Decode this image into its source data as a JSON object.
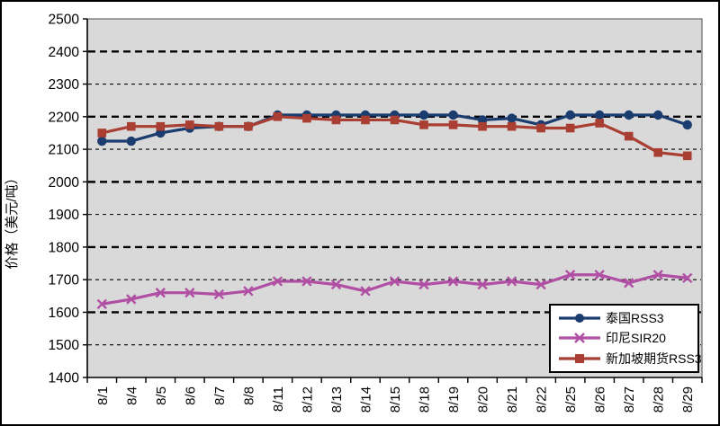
{
  "chart_data": {
    "type": "line",
    "title": "",
    "xlabel": "",
    "ylabel": "价格（美元/吨）",
    "ylim": [
      1400,
      2500
    ],
    "ytick_interval": 100,
    "ytick_labels": [
      "2500",
      "2400",
      "2300",
      "2200",
      "2100",
      "2000",
      "1900",
      "1800",
      "1700",
      "1600",
      "1500",
      "1400"
    ],
    "grid": "horizontal-dashed, major every 200, minor every 100",
    "legend_position": "inside-bottom-right",
    "plot_background": "#d9d9d9",
    "categories": [
      "8/1",
      "8/4",
      "8/5",
      "8/6",
      "8/7",
      "8/8",
      "8/11",
      "8/12",
      "8/13",
      "8/14",
      "8/15",
      "8/18",
      "8/19",
      "8/20",
      "8/21",
      "8/22",
      "8/25",
      "8/26",
      "8/27",
      "8/28",
      "8/29"
    ],
    "series": [
      {
        "name": "泰国RSS3",
        "color": "#1b3c6e",
        "marker": "circle",
        "values": [
          2125,
          2125,
          2150,
          2165,
          2170,
          2170,
          2205,
          2205,
          2205,
          2205,
          2205,
          2205,
          2205,
          2190,
          2195,
          2175,
          2205,
          2205,
          2205,
          2205,
          2175
        ]
      },
      {
        "name": "印尼SIR20",
        "color": "#b04fa3",
        "marker": "x",
        "values": [
          1625,
          1640,
          1660,
          1660,
          1655,
          1665,
          1695,
          1695,
          1685,
          1665,
          1695,
          1685,
          1695,
          1685,
          1695,
          1685,
          1715,
          1715,
          1690,
          1715,
          1705
        ]
      },
      {
        "name": "新加坡期货RSS3",
        "color": "#a93e32",
        "marker": "square",
        "values": [
          2150,
          2170,
          2170,
          2175,
          2170,
          2170,
          2200,
          2195,
          2190,
          2190,
          2190,
          2175,
          2175,
          2170,
          2170,
          2165,
          2165,
          2180,
          2140,
          2090,
          2080
        ]
      }
    ]
  }
}
